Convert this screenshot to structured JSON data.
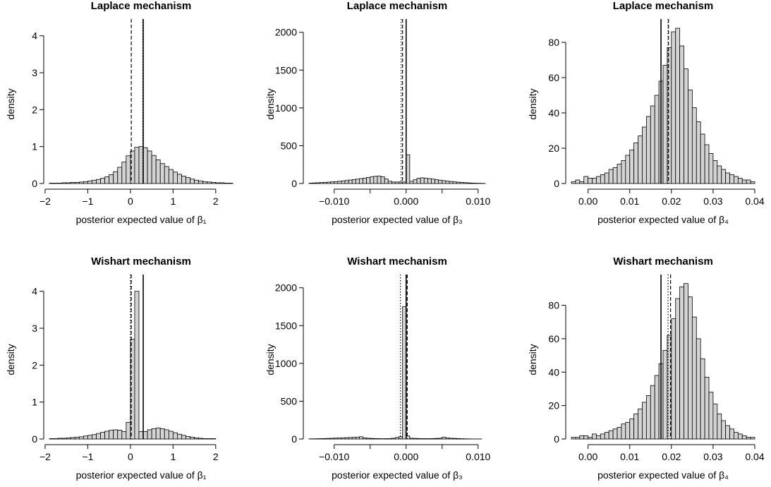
{
  "chart_data": [
    {
      "type": "bar",
      "title": "Laplace mechanism",
      "xlabel": "posterior expected value of β₁",
      "ylabel": "density",
      "xticks": [
        -2,
        -1,
        0,
        1,
        2
      ],
      "xtick_labels": [
        "−2",
        "−1",
        "0",
        "1",
        "2"
      ],
      "yticks": [
        0,
        1,
        2,
        3,
        4
      ],
      "ylim": [
        0,
        4.3
      ],
      "xlim": [
        -1.9,
        2.4
      ],
      "vlines": [
        {
          "style": "solid",
          "x": 0.3
        },
        {
          "style": "dashed",
          "x": 0.02
        },
        {
          "style": "dotted",
          "x": 0.29
        }
      ],
      "bins": {
        "start": -1.9,
        "width": 0.1,
        "values": [
          0.01,
          0.01,
          0.01,
          0.02,
          0.02,
          0.03,
          0.03,
          0.04,
          0.05,
          0.07,
          0.09,
          0.11,
          0.14,
          0.18,
          0.24,
          0.32,
          0.44,
          0.58,
          0.75,
          0.88,
          0.98,
          1.0,
          0.97,
          0.88,
          0.76,
          0.64,
          0.54,
          0.46,
          0.38,
          0.31,
          0.25,
          0.2,
          0.16,
          0.12,
          0.09,
          0.07,
          0.05,
          0.04,
          0.03,
          0.02,
          0.02,
          0.01,
          0.01
        ]
      }
    },
    {
      "type": "bar",
      "title": "Laplace mechanism",
      "xlabel": "posterior expected value of β₃",
      "ylabel": "density",
      "xticks": [
        -0.01,
        -0.005,
        0,
        0.005,
        0.01
      ],
      "xtick_labels": [
        "−0.010",
        "",
        "0.000",
        "",
        "0.010"
      ],
      "yticks": [
        0,
        500,
        1000,
        1500,
        2000
      ],
      "ylim": [
        0,
        2100
      ],
      "xlim": [
        -0.0135,
        0.011
      ],
      "vlines": [
        {
          "style": "solid",
          "x": 0.0
        },
        {
          "style": "dashed",
          "x": -0.0005
        },
        {
          "style": "dotted",
          "x": -0.0007
        }
      ],
      "bins": {
        "start": -0.0135,
        "width": 0.0005,
        "values": [
          5,
          8,
          10,
          12,
          15,
          18,
          22,
          26,
          30,
          35,
          40,
          46,
          52,
          58,
          65,
          72,
          80,
          88,
          95,
          100,
          90,
          60,
          30,
          20,
          20,
          20,
          20,
          380,
          30,
          50,
          70,
          75,
          70,
          65,
          58,
          50,
          44,
          38,
          32,
          27,
          22,
          18,
          14,
          11,
          8,
          6,
          4,
          3,
          2
        ]
      }
    },
    {
      "type": "bar",
      "title": "Laplace mechanism",
      "xlabel": "posterior expected value of β₄",
      "ylabel": "density",
      "xticks": [
        0,
        0.01,
        0.02,
        0.03,
        0.04
      ],
      "xtick_labels": [
        "0.00",
        "0.01",
        "0.02",
        "0.03",
        "0.04"
      ],
      "yticks": [
        0,
        20,
        40,
        60,
        80
      ],
      "ylim": [
        0,
        90
      ],
      "xlim": [
        -0.004,
        0.04
      ],
      "vlines": [
        {
          "style": "solid",
          "x": 0.0175
        },
        {
          "style": "dashed",
          "x": 0.0193
        },
        {
          "style": "dotted",
          "x": 0.0192
        }
      ],
      "bins": {
        "start": -0.004,
        "width": 0.001,
        "values": [
          1,
          2,
          1,
          4,
          3,
          3,
          4,
          5,
          6,
          8,
          9,
          11,
          13,
          16,
          19,
          23,
          27,
          32,
          38,
          44,
          50,
          58,
          67,
          77,
          86,
          88,
          78,
          65,
          53,
          43,
          35,
          28,
          22,
          17,
          13,
          10,
          8,
          6,
          5,
          4,
          3,
          2,
          2,
          1
        ]
      }
    },
    {
      "type": "bar",
      "title": "Wishart mechanism",
      "xlabel": "posterior expected value of β₁",
      "ylabel": "density",
      "xticks": [
        -2,
        -1,
        0,
        1,
        2
      ],
      "xtick_labels": [
        "−2",
        "−1",
        "0",
        "1",
        "2"
      ],
      "yticks": [
        0,
        1,
        2,
        3,
        4
      ],
      "ylim": [
        0,
        4.3
      ],
      "xlim": [
        -1.9,
        2.4
      ],
      "vlines": [
        {
          "style": "solid",
          "x": 0.3
        },
        {
          "style": "dashed",
          "x": 0.02
        },
        {
          "style": "dotted",
          "x": 0.0
        }
      ],
      "bins": {
        "start": -1.9,
        "width": 0.1,
        "values": [
          0.01,
          0.01,
          0.02,
          0.02,
          0.03,
          0.04,
          0.05,
          0.06,
          0.08,
          0.1,
          0.12,
          0.15,
          0.18,
          0.21,
          0.24,
          0.25,
          0.24,
          0.2,
          0.45,
          2.7,
          4.0,
          0.2,
          0.2,
          0.25,
          0.28,
          0.3,
          0.28,
          0.25,
          0.21,
          0.17,
          0.13,
          0.1,
          0.07,
          0.05,
          0.03,
          0.02,
          0.01,
          0.01,
          0.01,
          0.0,
          0.0,
          0.0,
          0.0
        ]
      }
    },
    {
      "type": "bar",
      "title": "Wishart mechanism",
      "xlabel": "posterior expected value of β₃",
      "ylabel": "density",
      "xticks": [
        -0.01,
        -0.005,
        0,
        0.005,
        0.01
      ],
      "xtick_labels": [
        "−0.010",
        "",
        "0.000",
        "",
        "0.010"
      ],
      "yticks": [
        0,
        500,
        1000,
        1500,
        2000
      ],
      "ylim": [
        0,
        2100
      ],
      "xlim": [
        -0.0135,
        0.011
      ],
      "vlines": [
        {
          "style": "solid",
          "x": 0.0
        },
        {
          "style": "dashed",
          "x": 0.00015
        },
        {
          "style": "dotted",
          "x": -0.0008
        }
      ],
      "bins": {
        "start": -0.0135,
        "width": 0.0005,
        "values": [
          2,
          3,
          4,
          5,
          6,
          8,
          10,
          12,
          14,
          16,
          18,
          20,
          22,
          25,
          30,
          15,
          10,
          8,
          6,
          5,
          4,
          5,
          6,
          10,
          20,
          30,
          1750,
          40,
          10,
          8,
          6,
          5,
          5,
          5,
          6,
          8,
          10,
          25,
          15,
          10,
          8,
          6,
          4,
          3,
          2,
          1,
          1,
          1,
          0
        ]
      }
    },
    {
      "type": "bar",
      "title": "Wishart mechanism",
      "xlabel": "posterior expected value of β₄",
      "ylabel": "density",
      "xticks": [
        0,
        0.01,
        0.02,
        0.03,
        0.04
      ],
      "xtick_labels": [
        "0.00",
        "0.01",
        "0.02",
        "0.03",
        "0.04"
      ],
      "yticks": [
        0,
        20,
        40,
        60,
        80
      ],
      "ylim": [
        0,
        95
      ],
      "xlim": [
        -0.004,
        0.04
      ],
      "vlines": [
        {
          "style": "solid",
          "x": 0.0175
        },
        {
          "style": "dashed",
          "x": 0.0198
        },
        {
          "style": "dotted",
          "x": 0.0192
        }
      ],
      "bins": {
        "start": -0.004,
        "width": 0.001,
        "values": [
          1,
          1,
          2,
          2,
          1,
          3,
          2,
          3,
          4,
          5,
          6,
          7,
          9,
          10,
          12,
          15,
          18,
          22,
          26,
          32,
          38,
          45,
          53,
          62,
          72,
          84,
          91,
          93,
          85,
          73,
          60,
          48,
          37,
          28,
          21,
          15,
          11,
          8,
          6,
          4,
          3,
          2,
          1,
          1
        ]
      }
    }
  ]
}
